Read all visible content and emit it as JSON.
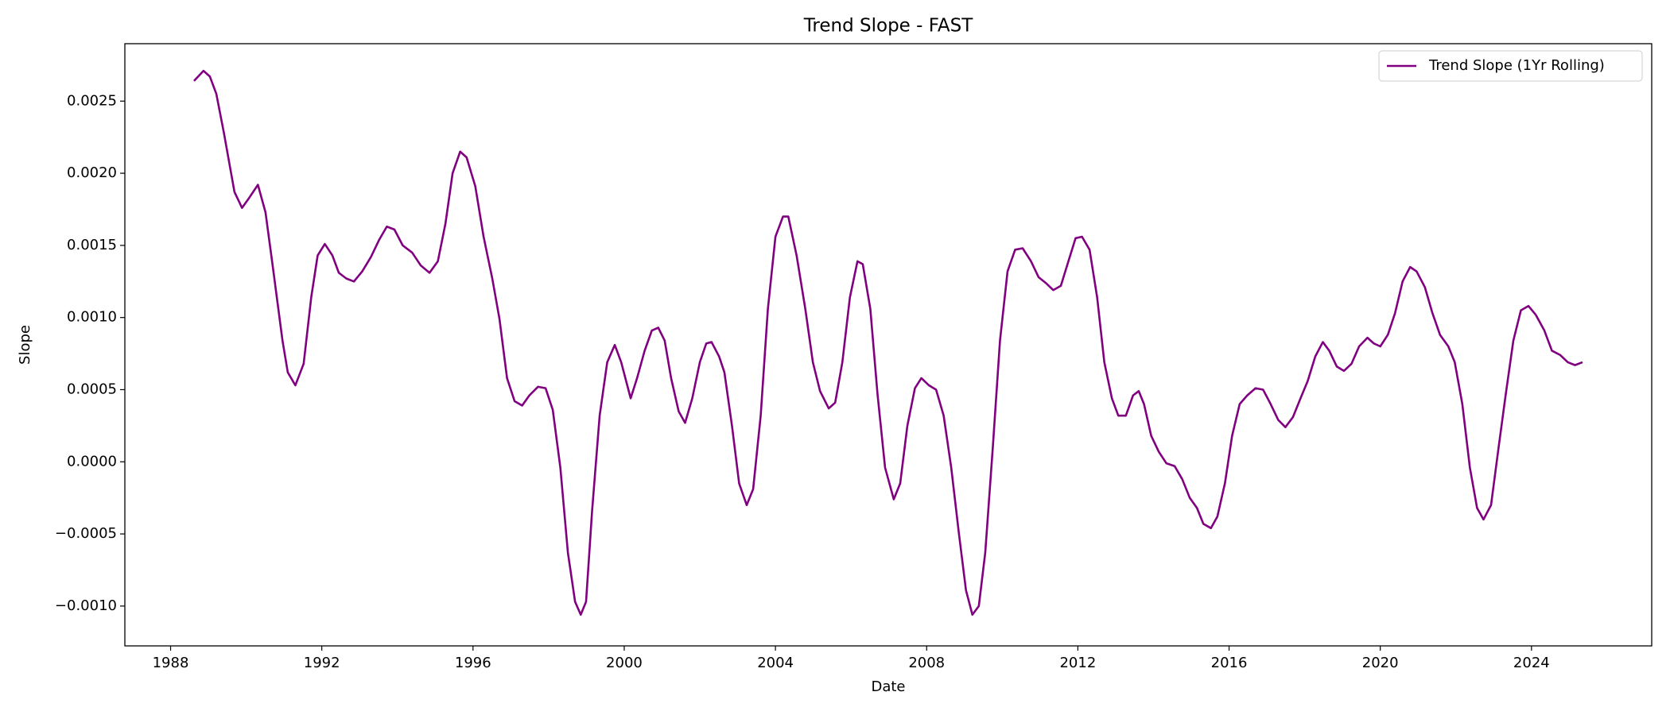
{
  "chart_data": {
    "type": "line",
    "title": "Trend Slope - FAST",
    "xlabel": "Date",
    "ylabel": "Slope",
    "x": [
      1988.62,
      1988.87,
      1989.04,
      1989.21,
      1989.41,
      1989.69,
      1989.89,
      1990.08,
      1990.31,
      1990.51,
      1990.7,
      1990.96,
      1991.1,
      1991.3,
      1991.52,
      1991.72,
      1991.89,
      1992.08,
      1992.28,
      1992.45,
      1992.65,
      1992.85,
      1993.07,
      1993.3,
      1993.52,
      1993.72,
      1993.92,
      1994.14,
      1994.39,
      1994.62,
      1994.85,
      1995.07,
      1995.27,
      1995.46,
      1995.66,
      1995.83,
      1996.06,
      1996.28,
      1996.51,
      1996.7,
      1996.9,
      1997.1,
      1997.3,
      1997.49,
      1997.72,
      1997.92,
      1998.11,
      1998.31,
      1998.51,
      1998.7,
      1998.85,
      1998.99,
      1999.15,
      1999.35,
      1999.55,
      1999.75,
      1999.92,
      2000.17,
      2000.34,
      2000.54,
      2000.73,
      2000.9,
      2001.07,
      2001.24,
      2001.44,
      2001.61,
      2001.8,
      2002.0,
      2002.17,
      2002.31,
      2002.51,
      2002.65,
      2002.85,
      2003.04,
      2003.24,
      2003.41,
      2003.61,
      2003.8,
      2004.0,
      2004.2,
      2004.34,
      2004.56,
      2004.79,
      2004.99,
      2005.18,
      2005.41,
      2005.58,
      2005.77,
      2005.97,
      2006.17,
      2006.31,
      2006.51,
      2006.7,
      2006.9,
      2007.13,
      2007.3,
      2007.49,
      2007.69,
      2007.86,
      2008.06,
      2008.25,
      2008.45,
      2008.65,
      2008.85,
      2009.04,
      2009.21,
      2009.38,
      2009.55,
      2009.75,
      2009.94,
      2010.14,
      2010.34,
      2010.54,
      2010.76,
      2010.96,
      2011.15,
      2011.35,
      2011.55,
      2011.75,
      2011.94,
      2012.11,
      2012.31,
      2012.51,
      2012.7,
      2012.9,
      2013.07,
      2013.27,
      2013.46,
      2013.61,
      2013.75,
      2013.94,
      2014.14,
      2014.34,
      2014.56,
      2014.76,
      2014.96,
      2015.15,
      2015.32,
      2015.52,
      2015.69,
      2015.89,
      2016.08,
      2016.28,
      2016.48,
      2016.7,
      2016.9,
      2017.1,
      2017.3,
      2017.49,
      2017.69,
      2017.89,
      2018.08,
      2018.28,
      2018.48,
      2018.65,
      2018.85,
      2019.04,
      2019.24,
      2019.44,
      2019.66,
      2019.83,
      2020.0,
      2020.2,
      2020.39,
      2020.59,
      2020.79,
      2020.96,
      2021.18,
      2021.38,
      2021.58,
      2021.8,
      2021.97,
      2022.17,
      2022.37,
      2022.56,
      2022.73,
      2022.93,
      2023.13,
      2023.32,
      2023.52,
      2023.72,
      2023.92,
      2024.11,
      2024.34,
      2024.54,
      2024.76,
      2024.96,
      2025.15,
      2025.35
    ],
    "series": [
      {
        "name": "Trend Slope (1Yr Rolling)",
        "color": "#800080",
        "values": [
          0.00264,
          0.00271,
          0.00267,
          0.00255,
          0.00228,
          0.00187,
          0.00176,
          0.00183,
          0.00192,
          0.00173,
          0.00136,
          0.00084,
          0.00062,
          0.00053,
          0.00068,
          0.00114,
          0.00143,
          0.00151,
          0.00143,
          0.00131,
          0.00127,
          0.00125,
          0.00132,
          0.00142,
          0.00154,
          0.00163,
          0.00161,
          0.0015,
          0.00145,
          0.00136,
          0.00131,
          0.00139,
          0.00165,
          0.002,
          0.00215,
          0.00211,
          0.00191,
          0.00156,
          0.00127,
          0.00099,
          0.00058,
          0.00042,
          0.00039,
          0.00046,
          0.00052,
          0.00051,
          0.00036,
          -4e-05,
          -0.00063,
          -0.00097,
          -0.00106,
          -0.00097,
          -0.00034,
          0.00032,
          0.00069,
          0.00081,
          0.00069,
          0.00044,
          0.00058,
          0.00077,
          0.00091,
          0.00093,
          0.00084,
          0.00058,
          0.00035,
          0.00027,
          0.00044,
          0.00069,
          0.00082,
          0.00083,
          0.00073,
          0.00062,
          0.00025,
          -0.00015,
          -0.0003,
          -0.00019,
          0.00032,
          0.00106,
          0.00156,
          0.0017,
          0.0017,
          0.00143,
          0.00106,
          0.00069,
          0.00049,
          0.00037,
          0.00041,
          0.00069,
          0.00114,
          0.00139,
          0.00137,
          0.00106,
          0.00047,
          -4e-05,
          -0.00026,
          -0.00015,
          0.00025,
          0.00051,
          0.00058,
          0.00053,
          0.0005,
          0.00032,
          -4e-05,
          -0.00049,
          -0.00089,
          -0.00106,
          -0.001,
          -0.00063,
          0.0001,
          0.00084,
          0.00132,
          0.00147,
          0.00148,
          0.00139,
          0.00128,
          0.00124,
          0.00119,
          0.00122,
          0.00139,
          0.00155,
          0.00156,
          0.00147,
          0.00114,
          0.00069,
          0.00044,
          0.00032,
          0.00032,
          0.00046,
          0.00049,
          0.0004,
          0.00018,
          7e-05,
          -1e-05,
          -3e-05,
          -0.00012,
          -0.00025,
          -0.00032,
          -0.00043,
          -0.00046,
          -0.00038,
          -0.00015,
          0.00018,
          0.0004,
          0.00046,
          0.00051,
          0.0005,
          0.0004,
          0.00029,
          0.00024,
          0.00031,
          0.00044,
          0.00056,
          0.00073,
          0.00083,
          0.00077,
          0.00066,
          0.00063,
          0.00068,
          0.0008,
          0.00086,
          0.00082,
          0.0008,
          0.00088,
          0.00103,
          0.00125,
          0.00135,
          0.00132,
          0.00121,
          0.00103,
          0.00088,
          0.0008,
          0.00069,
          0.0004,
          -4e-05,
          -0.00032,
          -0.0004,
          -0.0003,
          0.0001,
          0.00047,
          0.00084,
          0.00105,
          0.00108,
          0.00102,
          0.00091,
          0.00077,
          0.00074,
          0.00069,
          0.00067,
          0.00069
        ]
      }
    ],
    "xlim": [
      1986.79,
      2027.18
    ],
    "xticks": [
      1988,
      1992,
      1996,
      2000,
      2004,
      2008,
      2012,
      2016,
      2020,
      2024
    ],
    "ylim": [
      -0.001276,
      0.002898
    ],
    "yticks": [
      {
        "value": -0.001,
        "label": "−0.0010"
      },
      {
        "value": -0.0005,
        "label": "−0.0005"
      },
      {
        "value": 0,
        "label": "0.0000"
      },
      0.0005,
      {
        "value": 0.001,
        "label": "0.0010"
      },
      0.0015,
      {
        "value": 0.002,
        "label": "0.0020"
      },
      0.0025
    ],
    "legend": "upper right"
  }
}
